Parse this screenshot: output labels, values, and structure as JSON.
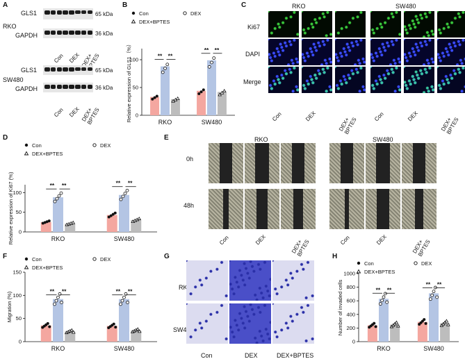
{
  "panels": {
    "a": "A",
    "b": "B",
    "c": "C",
    "d": "D",
    "e": "E",
    "f": "F",
    "g": "G",
    "h": "H"
  },
  "blot": {
    "cell_rko": "RKO",
    "cell_sw480": "SW480",
    "gls1": "GLS1",
    "gapdh": "GAPDH",
    "kda65": "65 kDa",
    "kda36": "36 kDa",
    "groups": [
      "Con",
      "DEX",
      "DEX+ BPTES"
    ]
  },
  "ihc": {
    "cells": [
      "RKO",
      "SW480"
    ],
    "rows": [
      "Ki67",
      "DAPI",
      "Merge"
    ],
    "cols": [
      "Con",
      "DEX",
      "DEX+ BPTES",
      "Con",
      "DEX",
      "DEX+ BPTES"
    ]
  },
  "wound": {
    "cells": [
      "RKO",
      "SW480"
    ],
    "rows": [
      "0h",
      "48h"
    ],
    "cols": [
      "Con",
      "DEX",
      "DEX+ BPTES",
      "Con",
      "DEX",
      "DEX+ BPTES"
    ]
  },
  "transwell": {
    "rows": [
      "RKO",
      "SW480"
    ],
    "cols": [
      "Con",
      "DEX",
      "DEX+BPTES"
    ]
  },
  "colors": {
    "con": "#f4a7a0",
    "dex": "#b4c5e4",
    "bptes": "#bdbdbd"
  },
  "sig": "**",
  "chart_data": [
    {
      "id": "B",
      "type": "bar",
      "ylabel": "Relative expression of GLS1（%）",
      "categories": [
        "RKO",
        "SW480"
      ],
      "legend": [
        "Con",
        "DEX",
        "DEX+BPTES"
      ],
      "ylim": [
        0,
        120
      ],
      "series": [
        {
          "name": "Con",
          "values": [
            33,
            44
          ]
        },
        {
          "name": "DEX",
          "values": [
            88,
            99
          ]
        },
        {
          "name": "DEX+BPTES",
          "values": [
            29,
            42
          ]
        }
      ]
    },
    {
      "id": "D",
      "type": "bar",
      "ylabel": "Relative expression of Ki67 (%)",
      "categories": [
        "RKO",
        "SW480"
      ],
      "legend": [
        "Con",
        "DEX",
        "DEX+BPTES"
      ],
      "ylim": [
        0,
        120
      ],
      "series": [
        {
          "name": "Con",
          "values": [
            25,
            43
          ]
        },
        {
          "name": "DEX",
          "values": [
            88,
            94
          ]
        },
        {
          "name": "DEX+BPTES",
          "values": [
            21,
            30
          ]
        }
      ]
    },
    {
      "id": "F",
      "type": "bar",
      "ylabel": "Migration (%)",
      "categories": [
        "RKO",
        "SW480"
      ],
      "legend": [
        "Con",
        "DEX",
        "DEX+BPTES"
      ],
      "ylim": [
        0,
        150
      ],
      "yticks": [
        0,
        50,
        100,
        150
      ],
      "series": [
        {
          "name": "Con",
          "values": [
            35,
            34
          ]
        },
        {
          "name": "DEX",
          "values": [
            92,
            92
          ]
        },
        {
          "name": "DEX+BPTES",
          "values": [
            22,
            24
          ]
        }
      ]
    },
    {
      "id": "H",
      "type": "bar",
      "ylabel": "Number of invaded cells",
      "categories": [
        "RKO",
        "SW480"
      ],
      "legend": [
        "Con",
        "DEX",
        "DEX+BPTES"
      ],
      "ylim": [
        0,
        1000
      ],
      "yticks": [
        0,
        200,
        400,
        600,
        800,
        1000
      ],
      "series": [
        {
          "name": "Con",
          "values": [
            240,
            290
          ]
        },
        {
          "name": "DEX",
          "values": [
            630,
            710
          ]
        },
        {
          "name": "DEX+BPTES",
          "values": [
            250,
            270
          ]
        }
      ]
    }
  ]
}
